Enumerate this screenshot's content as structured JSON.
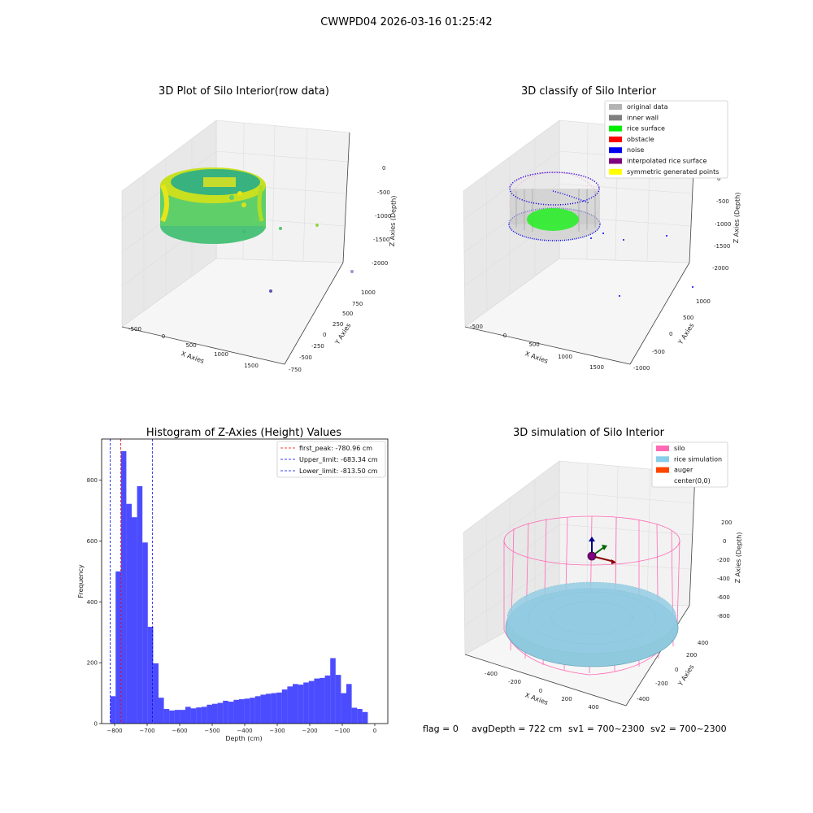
{
  "suptitle": "CWWPD04 2026-03-16 01:25:42",
  "panels": {
    "raw": {
      "title": "3D Plot of Silo Interior(row data)",
      "xlabel": "X Axies",
      "ylabel": "Y Axies",
      "zlabel": "Z Axies (Depth)",
      "x_ticks": [
        "-500",
        "0",
        "500",
        "1000",
        "1500"
      ],
      "y_ticks": [
        "-750",
        "-500",
        "-250",
        "0",
        "250",
        "500",
        "750",
        "1000"
      ],
      "z_ticks": [
        "0",
        "-500",
        "-1000",
        "-1500",
        "-2000"
      ]
    },
    "classify": {
      "title": "3D classify of Silo Interior",
      "xlabel": "X Axies",
      "ylabel": "Y Axies",
      "zlabel": "Z Axies (Depth)",
      "x_ticks": [
        "-500",
        "0",
        "500",
        "1000",
        "1500"
      ],
      "y_ticks": [
        "-1000",
        "-500",
        "0",
        "500",
        "1000"
      ],
      "z_ticks": [
        "0",
        "-500",
        "-1000",
        "-1500",
        "-2000"
      ],
      "legend": [
        {
          "label": "original data",
          "color": "#b3b3b3"
        },
        {
          "label": "inner wall",
          "color": "#808080"
        },
        {
          "label": "rice surface",
          "color": "#00ee00"
        },
        {
          "label": "obstacle",
          "color": "#ff0000"
        },
        {
          "label": "noise",
          "color": "#0000ee"
        },
        {
          "label": "interpolated rice surface",
          "color": "#800080"
        },
        {
          "label": "symmetric generated points",
          "color": "#ffff00"
        }
      ]
    },
    "simulation": {
      "title": "3D simulation of Silo Interior",
      "xlabel": "X Axies",
      "ylabel": "Y Axies",
      "zlabel": "Z Axies (Depth)",
      "x_ticks": [
        "-400",
        "-200",
        "0",
        "200",
        "400"
      ],
      "y_ticks": [
        "-400",
        "-200",
        "0",
        "200",
        "400"
      ],
      "z_ticks": [
        "200",
        "0",
        "-200",
        "-400",
        "-600",
        "-800"
      ],
      "legend": [
        {
          "label": "silo",
          "color": "#ff69b4"
        },
        {
          "label": "rice simulation",
          "color": "#87ceeb"
        },
        {
          "label": "auger",
          "color": "#ff4500"
        },
        {
          "label": "center(0,0)",
          "color": ""
        }
      ]
    }
  },
  "chart_data": {
    "type": "bar",
    "title": "Histogram of Z-Axies (Height) Values",
    "xlabel": "Depth (cm)",
    "ylabel": "Frequency",
    "xlim": [
      -840,
      40
    ],
    "ylim": [
      0,
      935
    ],
    "x_ticks": [
      -800,
      -700,
      -600,
      -500,
      -400,
      -300,
      -200,
      -100,
      0
    ],
    "y_ticks": [
      0,
      200,
      400,
      600,
      800
    ],
    "bin_start": -813.5,
    "bin_width": 16.5,
    "values": [
      90,
      500,
      895,
      722,
      678,
      780,
      595,
      318,
      198,
      85,
      48,
      43,
      45,
      45,
      55,
      50,
      53,
      55,
      62,
      65,
      68,
      75,
      72,
      78,
      80,
      82,
      85,
      90,
      95,
      98,
      100,
      102,
      112,
      122,
      130,
      128,
      135,
      140,
      148,
      150,
      158,
      215,
      160,
      100,
      130,
      52,
      48,
      38
    ],
    "bar_color": "#0000ff",
    "bar_opacity": 0.7,
    "lines": [
      {
        "value": -780.96,
        "label": "first_peak: -780.96 cm",
        "color": "#ff0000"
      },
      {
        "value": -683.34,
        "label": "Upper_limit: -683.34 cm",
        "color": "#0000ff"
      },
      {
        "value": -813.5,
        "label": "Lower_limit: -813.50 cm",
        "color": "#0000ff"
      }
    ],
    "legend_position": "upper right"
  },
  "footer": {
    "flag": "flag = 0",
    "avg_depth": "avgDepth = 722 cm",
    "sv1": "sv1 = 700~2300",
    "sv2": "sv2 = 700~2300"
  }
}
